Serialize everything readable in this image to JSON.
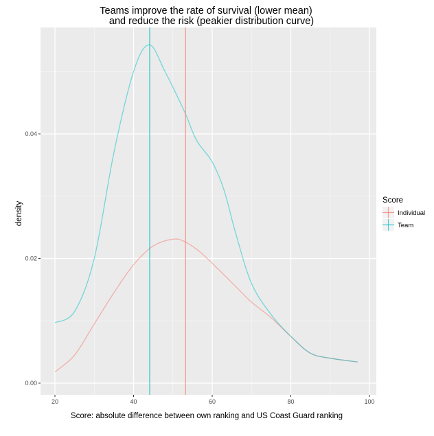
{
  "chart_data": {
    "type": "line",
    "subtype": "density",
    "title_lines": [
      "Teams improve the rate of survival (lower mean)",
      "and reduce the risk (peakier distribution curve)"
    ],
    "xlabel": "Score: absolute difference between own ranking and US Coast Guard ranking",
    "ylabel": "density",
    "xlim": [
      16.5,
      100.5
    ],
    "ylim": [
      -0.0019,
      0.0575
    ],
    "x_ticks": [
      20,
      40,
      60,
      80,
      100
    ],
    "x_tick_labels": [
      "20",
      "40",
      "60",
      "80",
      "100"
    ],
    "y_ticks": [
      0.0,
      0.02,
      0.04
    ],
    "y_tick_labels": [
      "0.00",
      "0.02",
      "0.04"
    ],
    "grid": true,
    "legend": {
      "title": "Score",
      "position": "right",
      "entries": [
        {
          "label": "Individual",
          "color": "#F8766D"
        },
        {
          "label": "Team",
          "color": "#00BFC4"
        }
      ]
    },
    "series": [
      {
        "name": "Individual",
        "color": "#F8766D",
        "mean": 53.2,
        "x": [
          20,
          25,
          30,
          35,
          40,
          45,
          50,
          53,
          57,
          62,
          66,
          70,
          75,
          80,
          85,
          90,
          97
        ],
        "values": [
          0.0018,
          0.0045,
          0.0095,
          0.0145,
          0.019,
          0.022,
          0.0231,
          0.0227,
          0.021,
          0.018,
          0.0155,
          0.013,
          0.0105,
          0.0075,
          0.0048,
          0.004,
          0.0034
        ]
      },
      {
        "name": "Team",
        "color": "#00BFC4",
        "mean": 44.1,
        "x": [
          20,
          25,
          30,
          35,
          40,
          44,
          48,
          53,
          56,
          60,
          63,
          66,
          70,
          75,
          80,
          85,
          90,
          97
        ],
        "values": [
          0.0097,
          0.0115,
          0.02,
          0.037,
          0.05,
          0.0543,
          0.05,
          0.0435,
          0.039,
          0.0355,
          0.031,
          0.024,
          0.016,
          0.011,
          0.0075,
          0.0048,
          0.004,
          0.0034
        ]
      }
    ]
  },
  "colors": {
    "panel_background": "#EBEBEB",
    "grid_major": "#FFFFFF",
    "grid_minor": "#F5F5F5",
    "individual": "#F8766D",
    "team": "#00BFC4"
  }
}
